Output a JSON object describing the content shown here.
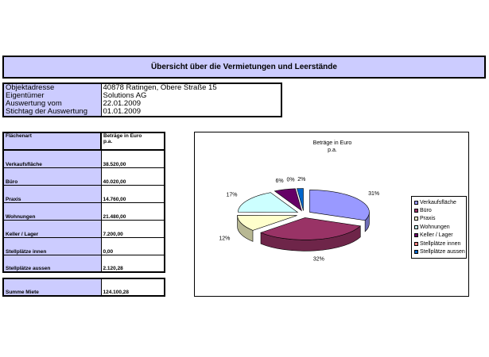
{
  "title": "Übersicht über die Vermietungen und Leerstände",
  "info": [
    {
      "label": "Objektadresse",
      "value": "40878 Ratingen, Obere Straße 15"
    },
    {
      "label": "Eigentümer",
      "value": "Solutions AG"
    },
    {
      "label": "Auswertung vom",
      "value": "22.01.2009"
    },
    {
      "label": "Stichtag der Auswertung",
      "value": "01.01.2009"
    }
  ],
  "table": {
    "header_label": "Flächenart",
    "header_value_line1": "Beträge in Euro",
    "header_value_line2": "p.a.",
    "rows": [
      {
        "label": "Verkaufsfläche",
        "value": "38.520,00"
      },
      {
        "label": "Büro",
        "value": "40.020,00"
      },
      {
        "label": "Praxis",
        "value": "14.760,00"
      },
      {
        "label": "Wohnungen",
        "value": "21.480,00"
      },
      {
        "label": "Keller / Lager",
        "value": "7.200,00"
      },
      {
        "label": "Stellplätze innen",
        "value": "0,00"
      },
      {
        "label": "Stellplätze aussen",
        "value": "2.120,28"
      }
    ],
    "sum_label": "Summe Miete",
    "sum_value": "124.100,28"
  },
  "chart_data": {
    "type": "pie",
    "title_line1": "Beträge in Euro",
    "title_line2": "p.a.",
    "categories": [
      "Verkaufsfläche",
      "Büro",
      "Praxis",
      "Wohnungen",
      "Keller / Lager",
      "Stellplätze innen",
      "Stellplätze aussen"
    ],
    "values": [
      38520.0,
      40020.0,
      14760.0,
      21480.0,
      7200.0,
      0.0,
      2120.28
    ],
    "percent_labels": [
      "31%",
      "32%",
      "12%",
      "17%",
      "6%",
      "0%",
      "2%"
    ],
    "colors": [
      "#9999ff",
      "#993366",
      "#ffffcc",
      "#ccffff",
      "#660066",
      "#ff8080",
      "#0066cc"
    ],
    "legend_position": "right",
    "style": "3d-exploded"
  }
}
